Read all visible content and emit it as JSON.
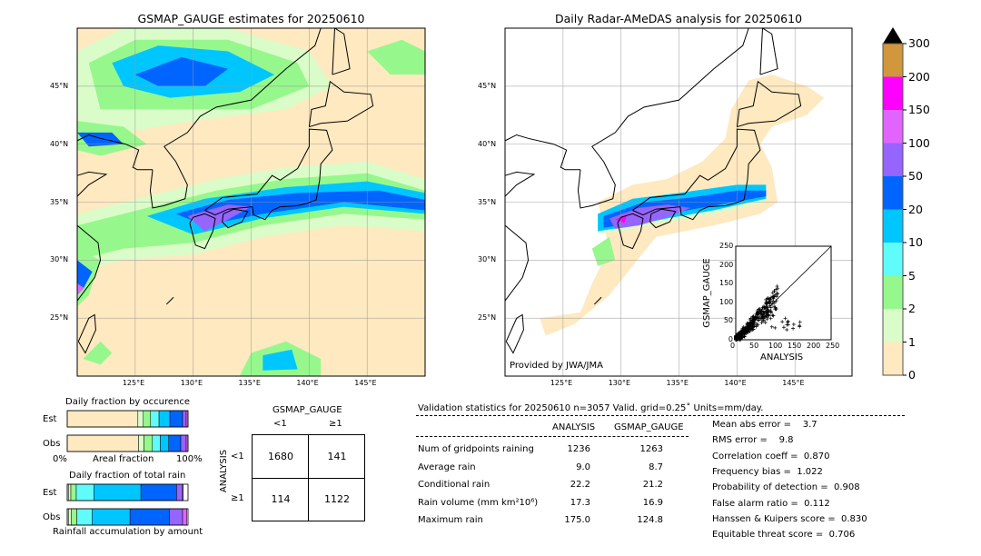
{
  "left_map": {
    "title": "GSMAP_GAUGE estimates for 20250610",
    "lon_ticks": [
      "125°E",
      "130°E",
      "135°E",
      "140°E",
      "145°E"
    ],
    "lat_ticks": [
      "45°N",
      "40°N",
      "35°N",
      "30°N",
      "25°N"
    ]
  },
  "right_map": {
    "title": "Daily Radar-AMeDAS analysis for 20250610",
    "lon_ticks": [
      "125°E",
      "130°E",
      "135°E",
      "140°E",
      "145°E"
    ],
    "lat_ticks": [
      "45°N",
      "40°N",
      "35°N",
      "30°N",
      "25°N"
    ],
    "credit": "Provided by JWA/JMA"
  },
  "scatter": {
    "xlabel": "ANALYSIS",
    "ylabel": "GSMAP_GAUGE",
    "ticks": [
      "0",
      "50",
      "100",
      "150",
      "200",
      "250"
    ],
    "range": [
      0,
      250
    ]
  },
  "colorbar": {
    "labels": [
      "0",
      "1",
      "2",
      "5",
      "10",
      "20",
      "50",
      "100",
      "150",
      "200",
      "300"
    ],
    "colors": [
      "#fee9c0",
      "#dafcc8",
      "#96f88c",
      "#60fcfc",
      "#00c6ff",
      "#0064ff",
      "#9664ff",
      "#e164ff",
      "#ff00ff",
      "#d2963c"
    ],
    "extend_color": "#000000"
  },
  "occurrence": {
    "title": "Daily fraction by occurence",
    "rows": [
      "Est",
      "Obs"
    ],
    "xlabel": "Areal fraction",
    "x_min": "0%",
    "x_max": "100%",
    "est": [
      58.5,
      4.5,
      6,
      7,
      9,
      10.5,
      3,
      1.5
    ],
    "obs": [
      59,
      4.5,
      7,
      6.5,
      7,
      10,
      4.5,
      1.5
    ]
  },
  "total_rain": {
    "title": "Daily fraction of total rain",
    "rows": [
      "Est",
      "Obs"
    ],
    "xlabel": "Rainfall accumulation by amount",
    "est": [
      1,
      2,
      4.5,
      14.5,
      39,
      29.5,
      5,
      0.5,
      0
    ],
    "obs": [
      1,
      2.5,
      4.5,
      12.5,
      31.5,
      32.5,
      11,
      3.5,
      0
    ]
  },
  "contingency": {
    "col_title": "GSMAP_GAUGE",
    "row_title": "ANALYSIS",
    "col_labels": [
      "<1",
      "≥1"
    ],
    "row_labels": [
      "<1",
      "≥1"
    ],
    "cells": [
      [
        "1680",
        "141"
      ],
      [
        "114",
        "1122"
      ]
    ]
  },
  "stats": {
    "header": "Validation statistics for 20250610  n=3057 Valid. grid=0.25˚ Units=mm/day.",
    "col_analysis": "ANALYSIS",
    "col_gsmap": "GSMAP_GAUGE",
    "rows": [
      {
        "label": "Num of gridpoints raining",
        "analysis": "1236",
        "gsmap": "1263"
      },
      {
        "label": "Average rain",
        "analysis": "9.0",
        "gsmap": "8.7"
      },
      {
        "label": "Conditional rain",
        "analysis": "22.2",
        "gsmap": "21.2"
      },
      {
        "label": "Rain volume (mm km²10⁶)",
        "analysis": "17.3",
        "gsmap": "16.9"
      },
      {
        "label": "Maximum rain",
        "analysis": "175.0",
        "gsmap": "124.8"
      }
    ],
    "scores": [
      "Mean abs error =    3.7",
      "RMS error =    9.8",
      "Correlation coeff =  0.870",
      "Frequency bias =  1.022",
      "Probability of detection =  0.908",
      "False alarm ratio =  0.112",
      "Hanssen & Kuipers score =  0.830",
      "Equitable threat score =  0.706"
    ]
  }
}
